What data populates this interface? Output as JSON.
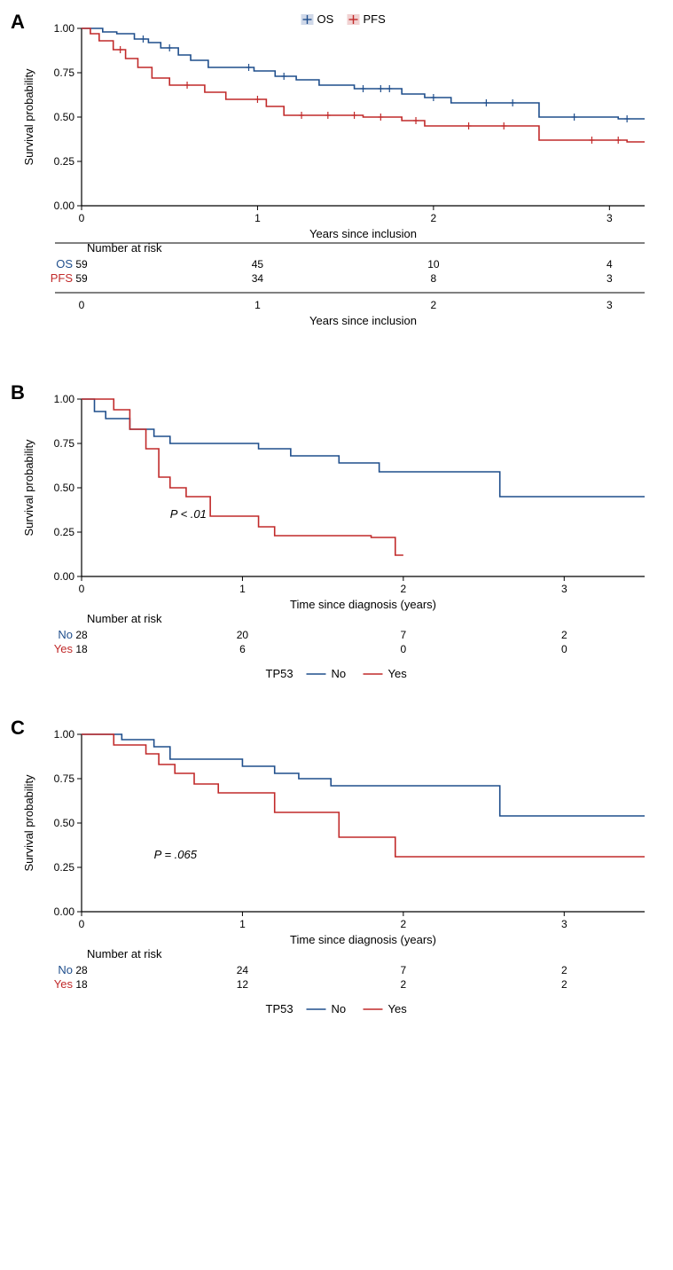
{
  "colors": {
    "blue": "#1f4e8c",
    "red": "#c12a2a",
    "axis": "#000000",
    "bg": "#ffffff"
  },
  "font": {
    "axis_label_pt": 13,
    "tick_pt": 12,
    "panel_label_pt": 22
  },
  "panelA": {
    "label": "A",
    "type": "km",
    "xlabel": "Years since inclusion",
    "ylabel": "Survival probability",
    "xlim": [
      0,
      3.2
    ],
    "xticks": [
      0,
      1,
      2,
      3
    ],
    "ylim": [
      0.0,
      1.0
    ],
    "yticks": [
      0.0,
      0.25,
      0.5,
      0.75,
      1.0
    ],
    "ytick_labels": [
      "0.00",
      "0.25",
      "0.50",
      "0.75",
      "1.00"
    ],
    "legend": {
      "items": [
        {
          "label": "OS",
          "color": "#1f4e8c",
          "swatch_bg": "#cfd8e8"
        },
        {
          "label": "PFS",
          "color": "#c12a2a",
          "swatch_bg": "#f1d2d2"
        }
      ]
    },
    "series": {
      "OS": {
        "color": "#1f4e8c",
        "line_width": 1.6,
        "step_xy": [
          [
            0.0,
            1.0
          ],
          [
            0.12,
            1.0
          ],
          [
            0.12,
            0.98
          ],
          [
            0.2,
            0.98
          ],
          [
            0.2,
            0.97
          ],
          [
            0.3,
            0.97
          ],
          [
            0.3,
            0.94
          ],
          [
            0.38,
            0.94
          ],
          [
            0.38,
            0.92
          ],
          [
            0.45,
            0.92
          ],
          [
            0.45,
            0.89
          ],
          [
            0.55,
            0.89
          ],
          [
            0.55,
            0.85
          ],
          [
            0.62,
            0.85
          ],
          [
            0.62,
            0.82
          ],
          [
            0.72,
            0.82
          ],
          [
            0.72,
            0.78
          ],
          [
            0.98,
            0.78
          ],
          [
            0.98,
            0.76
          ],
          [
            1.1,
            0.76
          ],
          [
            1.1,
            0.73
          ],
          [
            1.22,
            0.73
          ],
          [
            1.22,
            0.71
          ],
          [
            1.35,
            0.71
          ],
          [
            1.35,
            0.68
          ],
          [
            1.55,
            0.68
          ],
          [
            1.55,
            0.66
          ],
          [
            1.82,
            0.66
          ],
          [
            1.82,
            0.63
          ],
          [
            1.95,
            0.63
          ],
          [
            1.95,
            0.61
          ],
          [
            2.1,
            0.61
          ],
          [
            2.1,
            0.58
          ],
          [
            2.6,
            0.58
          ],
          [
            2.6,
            0.5
          ],
          [
            3.05,
            0.5
          ],
          [
            3.05,
            0.49
          ],
          [
            3.2,
            0.49
          ]
        ],
        "censor_x": [
          0.35,
          0.5,
          0.95,
          1.15,
          1.6,
          1.7,
          1.75,
          2.0,
          2.3,
          2.45,
          2.8,
          3.1
        ]
      },
      "PFS": {
        "color": "#c12a2a",
        "line_width": 1.6,
        "step_xy": [
          [
            0.0,
            1.0
          ],
          [
            0.05,
            1.0
          ],
          [
            0.05,
            0.97
          ],
          [
            0.1,
            0.97
          ],
          [
            0.1,
            0.93
          ],
          [
            0.18,
            0.93
          ],
          [
            0.18,
            0.88
          ],
          [
            0.25,
            0.88
          ],
          [
            0.25,
            0.83
          ],
          [
            0.32,
            0.83
          ],
          [
            0.32,
            0.78
          ],
          [
            0.4,
            0.78
          ],
          [
            0.4,
            0.72
          ],
          [
            0.5,
            0.72
          ],
          [
            0.5,
            0.68
          ],
          [
            0.7,
            0.68
          ],
          [
            0.7,
            0.64
          ],
          [
            0.82,
            0.64
          ],
          [
            0.82,
            0.6
          ],
          [
            1.05,
            0.6
          ],
          [
            1.05,
            0.56
          ],
          [
            1.15,
            0.56
          ],
          [
            1.15,
            0.51
          ],
          [
            1.6,
            0.51
          ],
          [
            1.6,
            0.5
          ],
          [
            1.82,
            0.5
          ],
          [
            1.82,
            0.48
          ],
          [
            1.95,
            0.48
          ],
          [
            1.95,
            0.45
          ],
          [
            2.6,
            0.45
          ],
          [
            2.6,
            0.37
          ],
          [
            3.1,
            0.37
          ],
          [
            3.1,
            0.36
          ],
          [
            3.2,
            0.36
          ]
        ],
        "censor_x": [
          0.22,
          0.6,
          1.0,
          1.25,
          1.4,
          1.55,
          1.7,
          1.9,
          2.2,
          2.4,
          2.9,
          3.05
        ]
      }
    },
    "risk_table": {
      "title": "Number at risk",
      "xlabel": "Years since inclusion",
      "rows": [
        {
          "label": "OS",
          "color": "#1f4e8c",
          "vals": [
            59,
            45,
            10,
            4
          ]
        },
        {
          "label": "PFS",
          "color": "#c12a2a",
          "vals": [
            59,
            34,
            8,
            3
          ]
        }
      ],
      "x_positions": [
        0,
        1,
        2,
        3
      ]
    }
  },
  "panelB": {
    "label": "B",
    "type": "km",
    "xlabel": "Time since diagnosis (years)",
    "ylabel": "Survival probability",
    "xlim": [
      0,
      3.5
    ],
    "xticks": [
      0,
      1,
      2,
      3
    ],
    "ylim": [
      0.0,
      1.0
    ],
    "yticks": [
      0.0,
      0.25,
      0.5,
      0.75,
      1.0
    ],
    "ytick_labels": [
      "0.00",
      "0.25",
      "0.50",
      "0.75",
      "1.00"
    ],
    "pvalue": "P < .01",
    "pvalue_xy": [
      0.55,
      0.33
    ],
    "legend": {
      "title": "TP53",
      "items": [
        {
          "label": "No",
          "color": "#1f4e8c"
        },
        {
          "label": "Yes",
          "color": "#c12a2a"
        }
      ]
    },
    "series": {
      "No": {
        "color": "#1f4e8c",
        "line_width": 1.6,
        "step_xy": [
          [
            0.0,
            1.0
          ],
          [
            0.08,
            1.0
          ],
          [
            0.08,
            0.93
          ],
          [
            0.15,
            0.93
          ],
          [
            0.15,
            0.89
          ],
          [
            0.3,
            0.89
          ],
          [
            0.3,
            0.83
          ],
          [
            0.45,
            0.83
          ],
          [
            0.45,
            0.79
          ],
          [
            0.55,
            0.79
          ],
          [
            0.55,
            0.75
          ],
          [
            1.1,
            0.75
          ],
          [
            1.1,
            0.72
          ],
          [
            1.3,
            0.72
          ],
          [
            1.3,
            0.68
          ],
          [
            1.6,
            0.68
          ],
          [
            1.6,
            0.64
          ],
          [
            1.85,
            0.64
          ],
          [
            1.85,
            0.59
          ],
          [
            2.6,
            0.59
          ],
          [
            2.6,
            0.45
          ],
          [
            3.5,
            0.45
          ]
        ],
        "censor_x": []
      },
      "Yes": {
        "color": "#c12a2a",
        "line_width": 1.6,
        "step_xy": [
          [
            0.0,
            1.0
          ],
          [
            0.2,
            1.0
          ],
          [
            0.2,
            0.94
          ],
          [
            0.3,
            0.94
          ],
          [
            0.3,
            0.83
          ],
          [
            0.4,
            0.83
          ],
          [
            0.4,
            0.72
          ],
          [
            0.48,
            0.72
          ],
          [
            0.48,
            0.56
          ],
          [
            0.55,
            0.56
          ],
          [
            0.55,
            0.5
          ],
          [
            0.65,
            0.5
          ],
          [
            0.65,
            0.45
          ],
          [
            0.8,
            0.45
          ],
          [
            0.8,
            0.34
          ],
          [
            1.1,
            0.34
          ],
          [
            1.1,
            0.28
          ],
          [
            1.2,
            0.28
          ],
          [
            1.2,
            0.23
          ],
          [
            1.8,
            0.23
          ],
          [
            1.8,
            0.22
          ],
          [
            1.95,
            0.22
          ],
          [
            1.95,
            0.12
          ],
          [
            2.0,
            0.12
          ]
        ],
        "censor_x": []
      }
    },
    "risk_table": {
      "title": "Number at risk",
      "rows": [
        {
          "label": "No",
          "color": "#1f4e8c",
          "vals": [
            28,
            20,
            7,
            2
          ]
        },
        {
          "label": "Yes",
          "color": "#c12a2a",
          "vals": [
            18,
            6,
            0,
            0
          ]
        }
      ],
      "x_positions": [
        0,
        1,
        2,
        3
      ]
    }
  },
  "panelC": {
    "label": "C",
    "type": "km",
    "xlabel": "Time since diagnosis (years)",
    "ylabel": "Survival probability",
    "xlim": [
      0,
      3.5
    ],
    "xticks": [
      0,
      1,
      2,
      3
    ],
    "ylim": [
      0.0,
      1.0
    ],
    "yticks": [
      0.0,
      0.25,
      0.5,
      0.75,
      1.0
    ],
    "ytick_labels": [
      "0.00",
      "0.25",
      "0.50",
      "0.75",
      "1.00"
    ],
    "pvalue": "P = .065",
    "pvalue_xy": [
      0.45,
      0.3
    ],
    "legend": {
      "title": "TP53",
      "items": [
        {
          "label": "No",
          "color": "#1f4e8c"
        },
        {
          "label": "Yes",
          "color": "#c12a2a"
        }
      ]
    },
    "series": {
      "No": {
        "color": "#1f4e8c",
        "line_width": 1.6,
        "step_xy": [
          [
            0.0,
            1.0
          ],
          [
            0.25,
            1.0
          ],
          [
            0.25,
            0.97
          ],
          [
            0.45,
            0.97
          ],
          [
            0.45,
            0.93
          ],
          [
            0.55,
            0.93
          ],
          [
            0.55,
            0.86
          ],
          [
            1.0,
            0.86
          ],
          [
            1.0,
            0.82
          ],
          [
            1.2,
            0.82
          ],
          [
            1.2,
            0.78
          ],
          [
            1.35,
            0.78
          ],
          [
            1.35,
            0.75
          ],
          [
            1.55,
            0.75
          ],
          [
            1.55,
            0.71
          ],
          [
            2.6,
            0.71
          ],
          [
            2.6,
            0.54
          ],
          [
            3.5,
            0.54
          ]
        ],
        "censor_x": []
      },
      "Yes": {
        "color": "#c12a2a",
        "line_width": 1.6,
        "step_xy": [
          [
            0.0,
            1.0
          ],
          [
            0.2,
            1.0
          ],
          [
            0.2,
            0.94
          ],
          [
            0.4,
            0.94
          ],
          [
            0.4,
            0.89
          ],
          [
            0.48,
            0.89
          ],
          [
            0.48,
            0.83
          ],
          [
            0.58,
            0.83
          ],
          [
            0.58,
            0.78
          ],
          [
            0.7,
            0.78
          ],
          [
            0.7,
            0.72
          ],
          [
            0.85,
            0.72
          ],
          [
            0.85,
            0.67
          ],
          [
            1.2,
            0.67
          ],
          [
            1.2,
            0.56
          ],
          [
            1.6,
            0.56
          ],
          [
            1.6,
            0.42
          ],
          [
            1.95,
            0.42
          ],
          [
            1.95,
            0.31
          ],
          [
            3.5,
            0.31
          ]
        ],
        "censor_x": []
      }
    },
    "risk_table": {
      "title": "Number at risk",
      "rows": [
        {
          "label": "No",
          "color": "#1f4e8c",
          "vals": [
            28,
            24,
            7,
            2
          ]
        },
        {
          "label": "Yes",
          "color": "#c12a2a",
          "vals": [
            18,
            12,
            2,
            2
          ]
        }
      ],
      "x_positions": [
        0,
        1,
        2,
        3
      ]
    }
  }
}
